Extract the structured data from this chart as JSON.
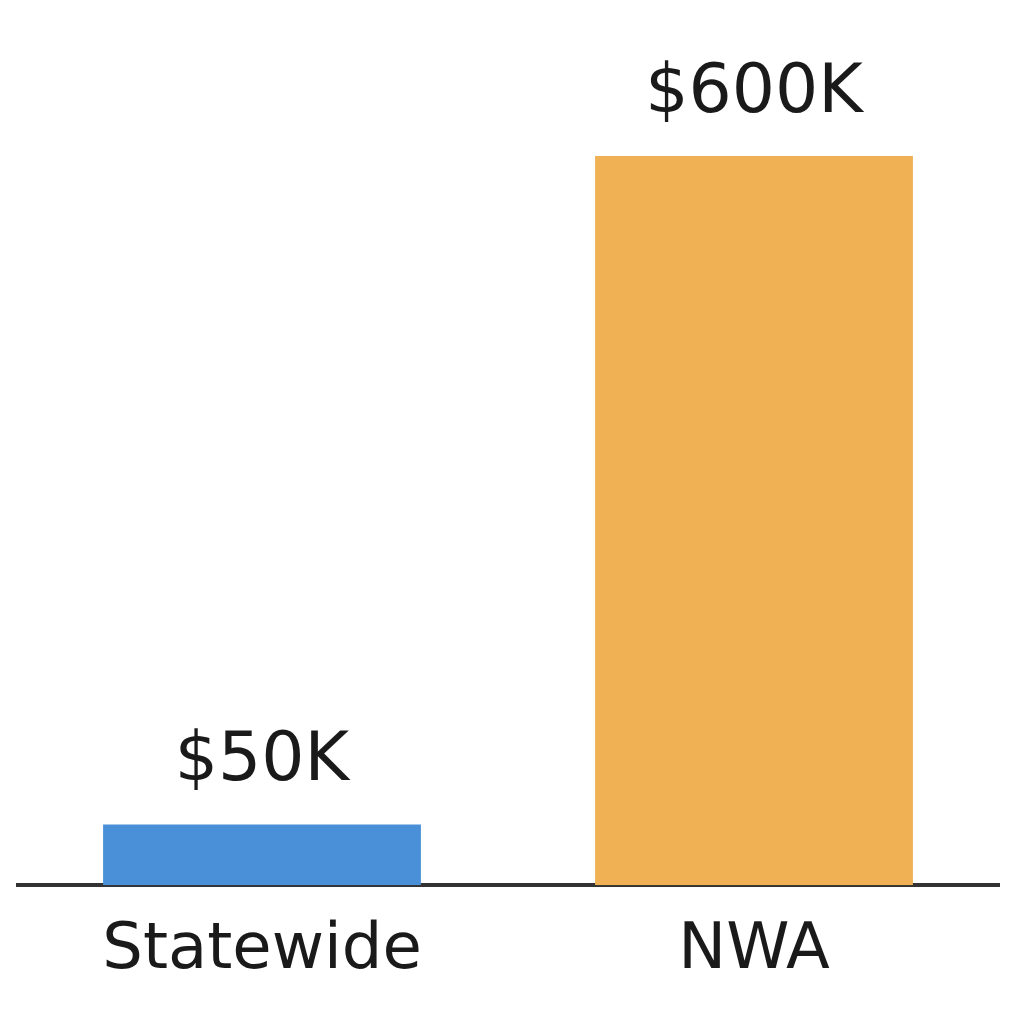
{
  "chart_data": {
    "type": "bar",
    "categories": [
      "Statewide",
      "NWA"
    ],
    "values": [
      50,
      600
    ],
    "value_labels": [
      "$50K",
      "$600K"
    ],
    "colors": [
      "#4a90d9",
      "#f0b054"
    ],
    "grid": false,
    "legend": false
  }
}
